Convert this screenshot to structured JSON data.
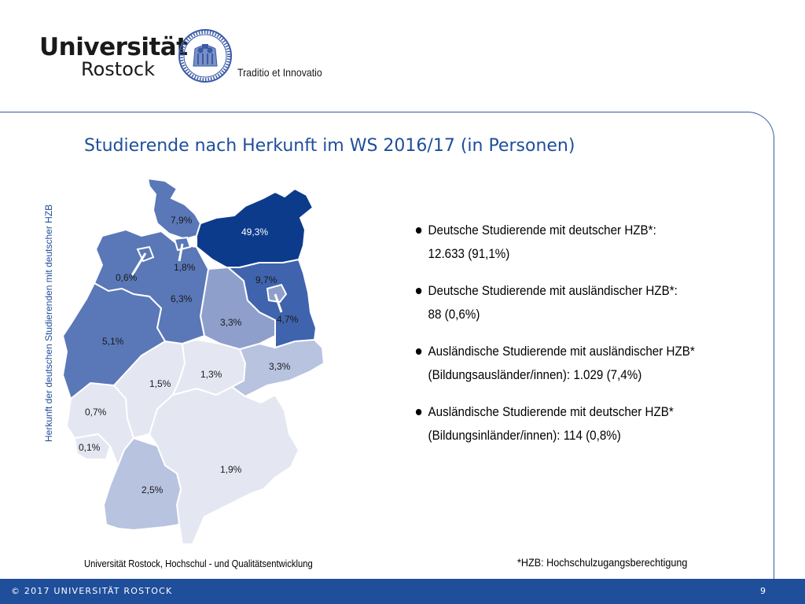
{
  "header": {
    "university": "Universität",
    "city": "Rostock",
    "motto": "Traditio et Innovatio"
  },
  "title": "Studierende nach Herkunft im WS 2016/17 (in Personen)",
  "map": {
    "axis_label": "Herkunft der deutschen Studierenden mit deutscher HZB",
    "labels": {
      "mv": "49,3%",
      "sh": "7,9%",
      "hh": "1,8%",
      "hb": "0,6%",
      "ni": "6,3%",
      "bb": "9,7%",
      "be": "4,7%",
      "st": "3,3%",
      "sn": "3,3%",
      "nw": "5,1%",
      "th": "1,3%",
      "he": "1,5%",
      "rp": "0,7%",
      "sl": "0,1%",
      "by": "1,9%",
      "bw": "2,5%"
    }
  },
  "bullets": [
    {
      "line1": "Deutsche Studierende mit deutscher HZB*:",
      "line2": "12.633 (91,1%)"
    },
    {
      "line1": "Deutsche Studierende mit ausländischer HZB*:",
      "line2": "88 (0,6%)"
    },
    {
      "line1": "Ausländische Studierende mit ausländischer HZB*",
      "line2": "(Bildungsausländer/innen):  1.029 (7,4%)"
    },
    {
      "line1": "Ausländische Studierende mit deutscher HZB*",
      "line2": "(Bildungsinländer/innen):   114 (0,8%)"
    }
  ],
  "source": "Universität Rostock, Hochschul - und Qualitätsentwicklung",
  "footnote": "*HZB: Hochschulzugangsberechtigung",
  "footer": {
    "copyright": "© 2017 UNIVERSITÄT ROSTOCK",
    "page": "9"
  },
  "colors": {
    "brand_blue": "#1f4e9a",
    "shade_darkest": "#0d3b8c",
    "shade_dark": "#3f63ad",
    "shade_mid": "#5a78b8",
    "shade_light": "#8e9fcc",
    "shade_lighter": "#b8c3e0",
    "shade_lightest": "#e4e7f2"
  }
}
